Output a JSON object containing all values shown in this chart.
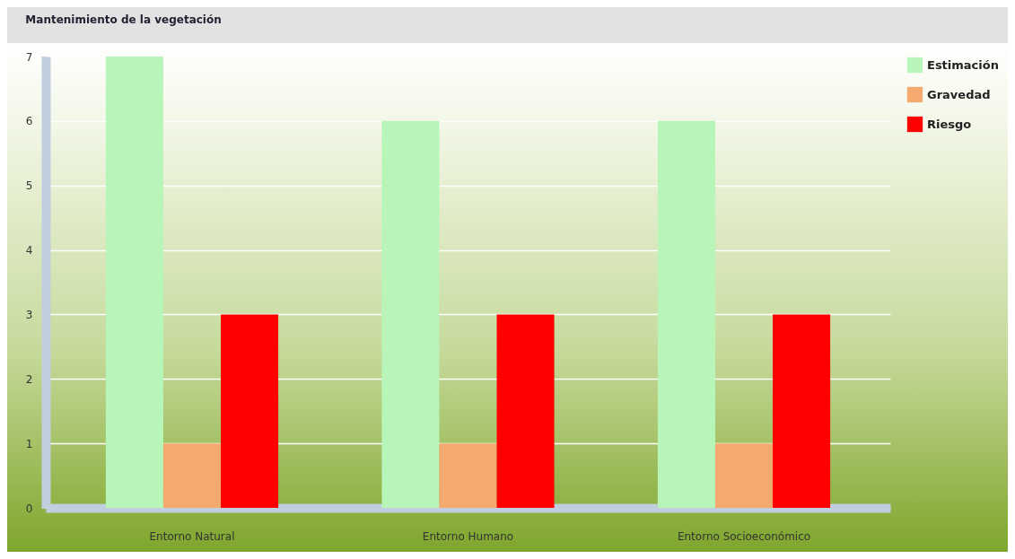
{
  "chart_data": {
    "type": "bar",
    "title": "Mantenimiento de la vegetación",
    "categories": [
      "Entorno Natural",
      "Entorno Humano",
      "Entorno Socioeconómico"
    ],
    "series": [
      {
        "name": "Estimación",
        "color": "#b8f5b8",
        "values": [
          7,
          6,
          6
        ]
      },
      {
        "name": "Gravedad",
        "color": "#f4aa6e",
        "values": [
          1,
          1,
          1
        ]
      },
      {
        "name": "Riesgo",
        "color": "#ff0000",
        "values": [
          3,
          3,
          3
        ]
      }
    ],
    "ylim": [
      0,
      7
    ],
    "yticks": [
      0,
      1,
      2,
      3,
      4,
      5,
      6,
      7
    ],
    "grid": "y",
    "legend": "top right"
  }
}
